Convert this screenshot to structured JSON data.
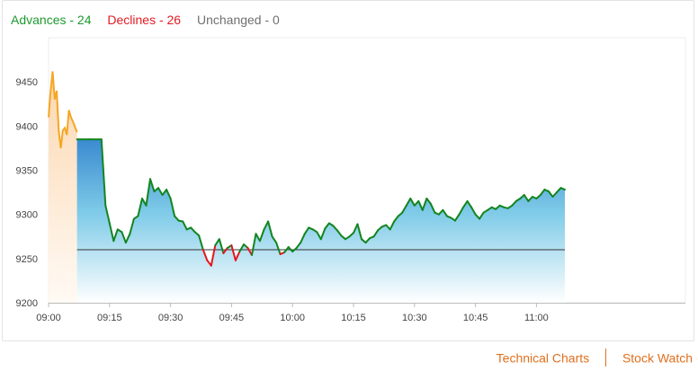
{
  "legend": {
    "advances": "Advances - 24",
    "declines": "Declines - 26",
    "unchanged": "Unchanged - 0"
  },
  "footer": {
    "technical_charts": "Technical Charts",
    "stock_watch": "Stock Watch"
  },
  "colors": {
    "advances": "#1d9a2e",
    "declines": "#e21b23",
    "unchanged": "#707070",
    "preopen_line": "#f5a623",
    "main_line_up": "#12851f",
    "main_line_down": "#e8141c",
    "area_top": "#3a8ad0",
    "area_bottom": "#ffffff",
    "link": "#e0701e"
  },
  "chart_data": {
    "type": "line",
    "title": "",
    "xlabel": "",
    "ylabel": "",
    "ylim": [
      9200,
      9500
    ],
    "yticks": [
      "9200",
      "9250",
      "9300",
      "9350",
      "9400",
      "9450"
    ],
    "xticks": [
      "09:00",
      "09:15",
      "09:30",
      "09:45",
      "10:00",
      "10:15",
      "10:30",
      "10:45",
      "11:00"
    ],
    "xrange": [
      "09:00",
      "11:07"
    ],
    "reference_level": 9260,
    "grid": false,
    "series": [
      {
        "segment": "pre-open",
        "points": [
          [
            "09:00",
            9410
          ],
          [
            "09:00.5",
            9440
          ],
          [
            "09:01",
            9462
          ],
          [
            "09:01.5",
            9430
          ],
          [
            "09:02",
            9440
          ],
          [
            "09:02.5",
            9395
          ],
          [
            "09:03",
            9375
          ],
          [
            "09:03.5",
            9395
          ],
          [
            "09:04",
            9398
          ],
          [
            "09:04.5",
            9390
          ],
          [
            "09:05",
            9418
          ],
          [
            "09:05.5",
            9410
          ],
          [
            "09:06",
            9405
          ],
          [
            "09:07",
            9393
          ]
        ]
      },
      {
        "segment": "session",
        "points": [
          [
            "09:07",
            9385
          ],
          [
            "09:10",
            9385
          ],
          [
            "09:13",
            9385
          ],
          [
            "09:14",
            9310
          ],
          [
            "09:15",
            9290
          ],
          [
            "09:16",
            9270
          ],
          [
            "09:17",
            9283
          ],
          [
            "09:18",
            9280
          ],
          [
            "09:19",
            9268
          ],
          [
            "09:20",
            9278
          ],
          [
            "09:21",
            9295
          ],
          [
            "09:22",
            9298
          ],
          [
            "09:23",
            9318
          ],
          [
            "09:24",
            9310
          ],
          [
            "09:25",
            9340
          ],
          [
            "09:26",
            9326
          ],
          [
            "09:27",
            9330
          ],
          [
            "09:28",
            9322
          ],
          [
            "09:29",
            9328
          ],
          [
            "09:30",
            9318
          ],
          [
            "09:31",
            9298
          ],
          [
            "09:32",
            9293
          ],
          [
            "09:33",
            9292
          ],
          [
            "09:34",
            9283
          ],
          [
            "09:35",
            9285
          ],
          [
            "09:36",
            9280
          ],
          [
            "09:37",
            9276
          ],
          [
            "09:38",
            9260
          ],
          [
            "09:39",
            9248
          ],
          [
            "09:40",
            9242
          ],
          [
            "09:41",
            9265
          ],
          [
            "09:42",
            9272
          ],
          [
            "09:43",
            9256
          ],
          [
            "09:44",
            9262
          ],
          [
            "09:45",
            9265
          ],
          [
            "09:46",
            9248
          ],
          [
            "09:47",
            9258
          ],
          [
            "09:48",
            9266
          ],
          [
            "09:49",
            9262
          ],
          [
            "09:50",
            9254
          ],
          [
            "09:51",
            9278
          ],
          [
            "09:52",
            9270
          ],
          [
            "09:53",
            9283
          ],
          [
            "09:54",
            9292
          ],
          [
            "09:55",
            9275
          ],
          [
            "09:56",
            9268
          ],
          [
            "09:57",
            9255
          ],
          [
            "09:58",
            9257
          ],
          [
            "09:59",
            9263
          ],
          [
            "10:00",
            9258
          ],
          [
            "10:01",
            9262
          ],
          [
            "10:02",
            9268
          ],
          [
            "10:03",
            9278
          ],
          [
            "10:04",
            9285
          ],
          [
            "10:05",
            9283
          ],
          [
            "10:06",
            9280
          ],
          [
            "10:07",
            9272
          ],
          [
            "10:08",
            9284
          ],
          [
            "10:09",
            9290
          ],
          [
            "10:10",
            9287
          ],
          [
            "10:11",
            9282
          ],
          [
            "10:12",
            9276
          ],
          [
            "10:13",
            9272
          ],
          [
            "10:14",
            9275
          ],
          [
            "10:15",
            9279
          ],
          [
            "10:16",
            9289
          ],
          [
            "10:17",
            9272
          ],
          [
            "10:18",
            9268
          ],
          [
            "10:19",
            9273
          ],
          [
            "10:20",
            9275
          ],
          [
            "10:21",
            9282
          ],
          [
            "10:22",
            9286
          ],
          [
            "10:23",
            9288
          ],
          [
            "10:24",
            9283
          ],
          [
            "10:25",
            9292
          ],
          [
            "10:26",
            9298
          ],
          [
            "10:27",
            9302
          ],
          [
            "10:28",
            9310
          ],
          [
            "10:29",
            9318
          ],
          [
            "10:30",
            9310
          ],
          [
            "10:31",
            9315
          ],
          [
            "10:32",
            9305
          ],
          [
            "10:33",
            9318
          ],
          [
            "10:34",
            9312
          ],
          [
            "10:35",
            9302
          ],
          [
            "10:36",
            9300
          ],
          [
            "10:37",
            9305
          ],
          [
            "10:38",
            9298
          ],
          [
            "10:39",
            9296
          ],
          [
            "10:40",
            9293
          ],
          [
            "10:41",
            9300
          ],
          [
            "10:42",
            9308
          ],
          [
            "10:43",
            9315
          ],
          [
            "10:44",
            9308
          ],
          [
            "10:45",
            9300
          ],
          [
            "10:46",
            9295
          ],
          [
            "10:47",
            9302
          ],
          [
            "10:48",
            9305
          ],
          [
            "10:49",
            9308
          ],
          [
            "10:50",
            9306
          ],
          [
            "10:51",
            9310
          ],
          [
            "10:52",
            9308
          ],
          [
            "10:53",
            9307
          ],
          [
            "10:54",
            9310
          ],
          [
            "10:55",
            9315
          ],
          [
            "10:56",
            9318
          ],
          [
            "10:57",
            9322
          ],
          [
            "10:58",
            9315
          ],
          [
            "10:59",
            9320
          ],
          [
            "11:00",
            9318
          ],
          [
            "11:01",
            9322
          ],
          [
            "11:02",
            9328
          ],
          [
            "11:03",
            9326
          ],
          [
            "11:04",
            9320
          ],
          [
            "11:05",
            9325
          ],
          [
            "11:06",
            9330
          ],
          [
            "11:07",
            9328
          ]
        ]
      }
    ]
  }
}
